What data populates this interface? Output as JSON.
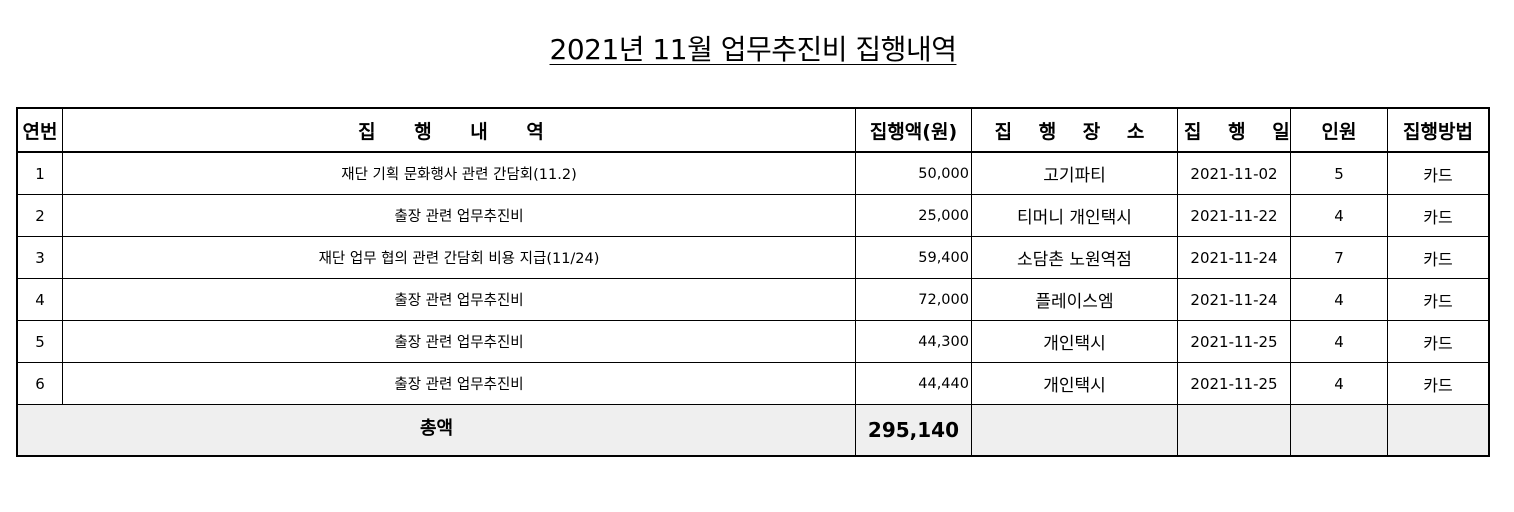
{
  "title": "2021년 11월 업무추진비 집행내역",
  "table": {
    "headers": {
      "no": "연번",
      "description": "집 행 내 역",
      "amount": "집행액(원)",
      "place": "집 행 장 소",
      "date": "집 행 일",
      "people": "인원",
      "method": "집행방법"
    },
    "rows": [
      {
        "no": "1",
        "description": "재단 기획 문화행사 관련 간담회(11.2)",
        "amount": "50,000",
        "place": "고기파티",
        "date": "2021-11-02",
        "people": "5",
        "method": "카드"
      },
      {
        "no": "2",
        "description": "출장 관련 업무추진비",
        "amount": "25,000",
        "place": "티머니 개인택시",
        "date": "2021-11-22",
        "people": "4",
        "method": "카드"
      },
      {
        "no": "3",
        "description": "재단 업무 협의 관련 간담회 비용 지급(11/24)",
        "amount": "59,400",
        "place": "소담촌 노원역점",
        "date": "2021-11-24",
        "people": "7",
        "method": "카드"
      },
      {
        "no": "4",
        "description": "출장 관련 업무추진비",
        "amount": "72,000",
        "place": "플레이스엠",
        "date": "2021-11-24",
        "people": "4",
        "method": "카드"
      },
      {
        "no": "5",
        "description": "출장 관련 업무추진비",
        "amount": "44,300",
        "place": "개인택시",
        "date": "2021-11-25",
        "people": "4",
        "method": "카드"
      },
      {
        "no": "6",
        "description": "출장 관련 업무추진비",
        "amount": "44,440",
        "place": "개인택시",
        "date": "2021-11-25",
        "people": "4",
        "method": "카드"
      }
    ],
    "total": {
      "label": "총액",
      "amount": "295,140"
    }
  }
}
